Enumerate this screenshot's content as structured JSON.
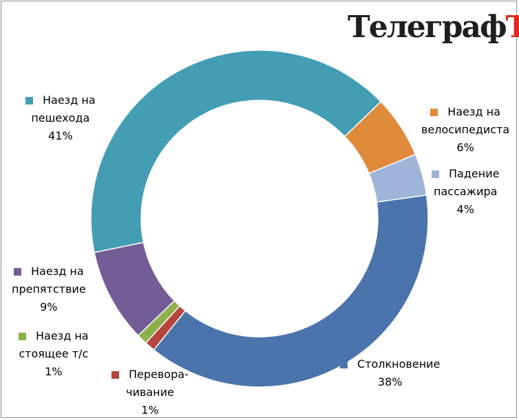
{
  "logo": {
    "main": "Телеграф",
    "accent": "Ъ"
  },
  "chart_data": {
    "type": "pie",
    "variant": "donut",
    "start": "top-right",
    "direction": "clockwise",
    "legend": "labels beside slices",
    "slices": [
      {
        "label_lines": [
          "Наезд на",
          "велосипедиста"
        ],
        "value": 6,
        "percent": "6%",
        "color": "#e08a3c"
      },
      {
        "label_lines": [
          "Падение",
          "пассажира"
        ],
        "value": 4,
        "percent": "4%",
        "color": "#9eb4d8"
      },
      {
        "label_lines": [
          "Столкновение"
        ],
        "value": 38,
        "percent": "38%",
        "color": "#4a74ab"
      },
      {
        "label_lines": [
          "Перевора-",
          "чивание"
        ],
        "value": 1,
        "percent": "1%",
        "color": "#b6453d"
      },
      {
        "label_lines": [
          "Наезд на",
          "стоящее т/с"
        ],
        "value": 1,
        "percent": "1%",
        "color": "#8eb04c"
      },
      {
        "label_lines": [
          "Наезд на",
          "препятствие"
        ],
        "value": 9,
        "percent": "9%",
        "color": "#745c96"
      },
      {
        "label_lines": [
          "Наезд на",
          "пешехода"
        ],
        "value": 41,
        "percent": "41%",
        "color": "#439db3"
      }
    ]
  }
}
